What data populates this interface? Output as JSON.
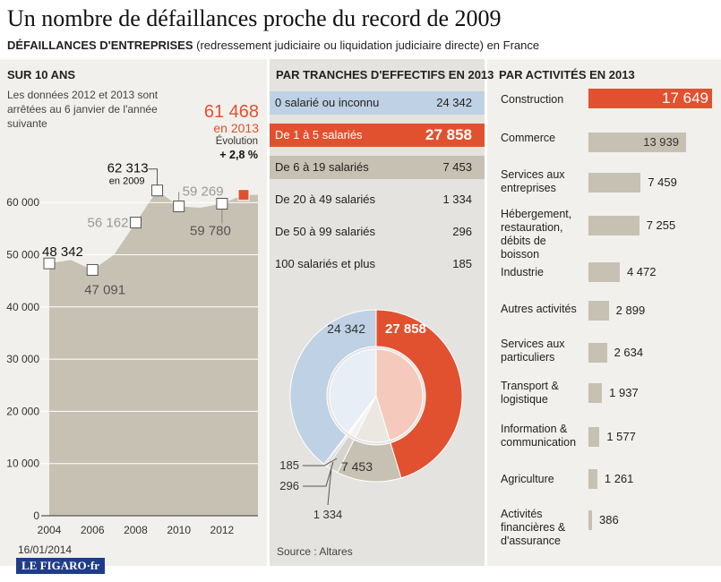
{
  "title": "Un nombre de défaillances proche du record de 2009",
  "subtitle_bold": "DÉFAILLANCES D'ENTREPRISES",
  "subtitle_rest": " (redressement judiciaire ou liquidation judiciaire directe) en France",
  "left_panel": {
    "heading": "SUR 10 ANS",
    "note": "Les données 2012 et 2013 sont arrêtées au 6 janvier de l'année suivante",
    "callout_value": "61 468",
    "callout_year": "en 2013",
    "callout_evolution_label": "Évolution",
    "callout_evolution_value": "+ 2,8 %",
    "record_sub": "en 2009"
  },
  "mid_panel": {
    "heading": "PAR TRANCHES D'EFFECTIFS EN 2013",
    "rows": [
      {
        "label": "0 salarié ou inconnu",
        "value": "24 342"
      },
      {
        "label": "De 1 à 5 salariés",
        "value": "27 858"
      },
      {
        "label": "De 6 à 19 salariés",
        "value": "7 453"
      },
      {
        "label": "De 20 à 49 salariés",
        "value": "1 334"
      },
      {
        "label": "De 50 à 99 salariés",
        "value": "296"
      },
      {
        "label": "100 salariés et plus",
        "value": "185"
      }
    ],
    "source": "Source : Altares"
  },
  "right_panel": {
    "heading": "PAR ACTIVITÉS EN 2013"
  },
  "footer": {
    "date": "16/01/2014",
    "logo": "LE FIGARO·fr"
  },
  "colors": {
    "accent": "#e2512f",
    "tan": "#c7c1b3",
    "blue": "#bfd1e4",
    "panel": "#f1f0ec"
  },
  "chart_data": [
    {
      "type": "area",
      "title": "SUR 10 ANS",
      "x": [
        2004,
        2005,
        2006,
        2007,
        2008,
        2009,
        2010,
        2011,
        2012,
        2013
      ],
      "values": [
        48342,
        49000,
        47091,
        50000,
        56162,
        62313,
        59269,
        59000,
        59780,
        61468
      ],
      "labeled_points": [
        {
          "year": 2004,
          "value": 48342,
          "label": "48 342"
        },
        {
          "year": 2006,
          "value": 47091,
          "label": "47 091"
        },
        {
          "year": 2008,
          "value": 56162,
          "label": "56 162"
        },
        {
          "year": 2009,
          "value": 62313,
          "label": "62 313"
        },
        {
          "year": 2010,
          "value": 59269,
          "label": "59 269"
        },
        {
          "year": 2012,
          "value": 59780,
          "label": "59 780"
        },
        {
          "year": 2013,
          "value": 61468,
          "label": "61 468"
        }
      ],
      "y_ticks": [
        {
          "value": 0,
          "label": "0"
        },
        {
          "value": 10000,
          "label": "10 000"
        },
        {
          "value": 20000,
          "label": "20 000"
        },
        {
          "value": 30000,
          "label": "30 000"
        },
        {
          "value": 40000,
          "label": "40 000"
        },
        {
          "value": 50000,
          "label": "50 000"
        },
        {
          "value": 60000,
          "label": "60 000"
        }
      ],
      "x_ticks": [
        {
          "value": 2004,
          "label": "2004"
        },
        {
          "value": 2006,
          "label": "2006"
        },
        {
          "value": 2008,
          "label": "2008"
        },
        {
          "value": 2010,
          "label": "2010"
        },
        {
          "value": 2012,
          "label": "2012"
        }
      ],
      "ylim": [
        0,
        65000
      ]
    },
    {
      "type": "pie",
      "title": "PAR TRANCHES D'EFFECTIFS EN 2013",
      "categories": [
        "De 1 à 5 salariés",
        "De 6 à 19 salariés",
        "De 20 à 49 salariés",
        "De 50 à 99 salariés",
        "100 salariés et plus",
        "0 salarié ou inconnu"
      ],
      "values": [
        27858,
        7453,
        1334,
        296,
        185,
        24342
      ],
      "value_labels": [
        "27 858",
        "7 453",
        "1 334",
        "296",
        "185",
        "24 342"
      ]
    },
    {
      "type": "bar",
      "title": "PAR ACTIVITÉS EN 2013",
      "categories": [
        "Construction",
        "Commerce",
        "Services aux entreprises",
        "Hébergement, restauration, débits de boisson",
        "Industrie",
        "Autres activités",
        "Services aux particuliers",
        "Transport & logistique",
        "Information & communication",
        "Agriculture",
        "Activités financières & d'assurance"
      ],
      "values": [
        17649,
        13939,
        7459,
        7255,
        4472,
        2899,
        2634,
        1937,
        1577,
        1261,
        386
      ],
      "value_labels": [
        "17 649",
        "13 939",
        "7 459",
        "7 255",
        "4 472",
        "2 899",
        "2 634",
        "1 937",
        "1 577",
        "1 261",
        "386"
      ]
    }
  ]
}
